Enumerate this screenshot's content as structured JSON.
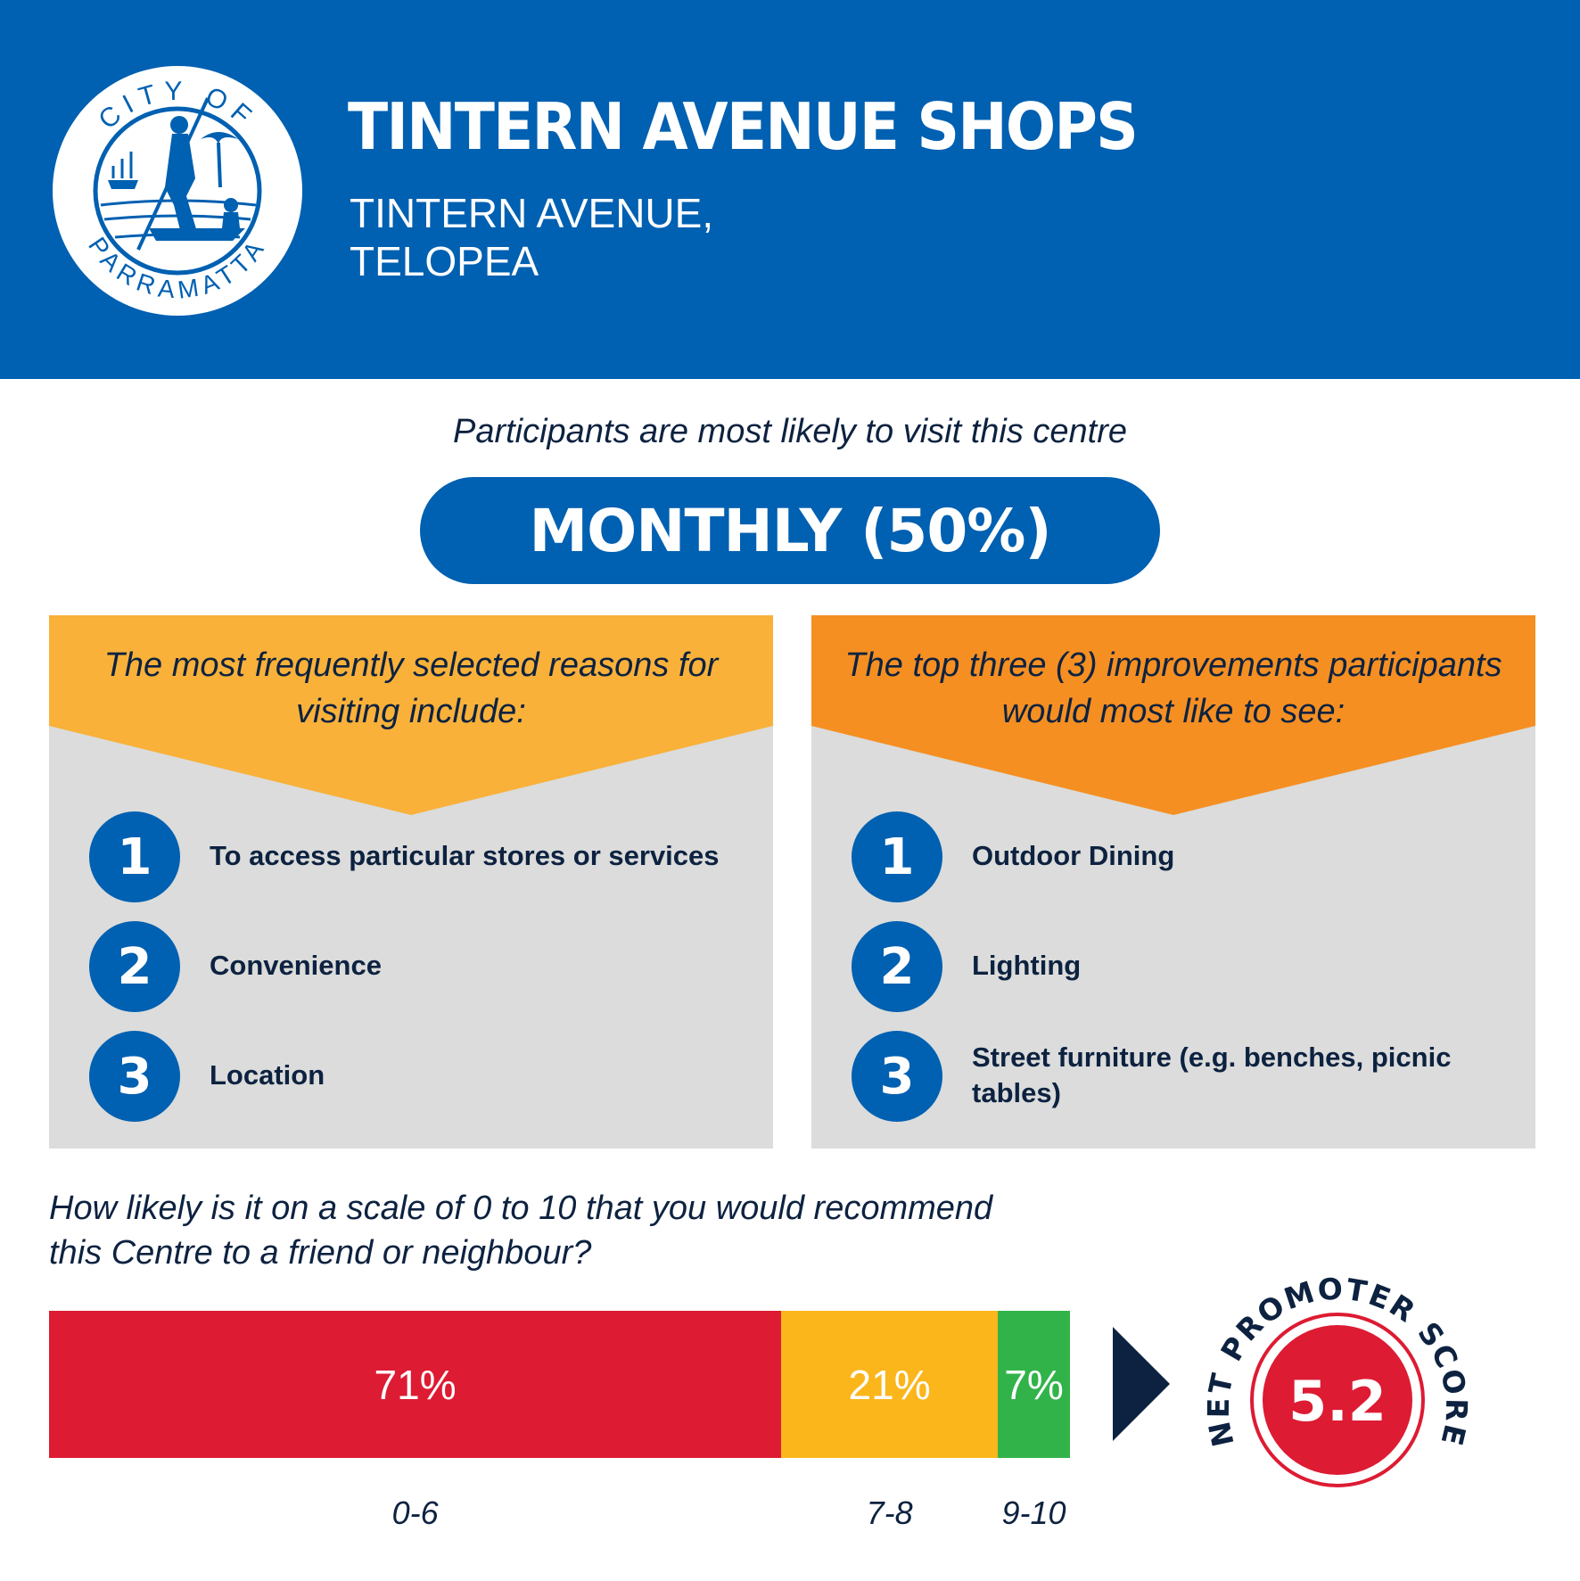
{
  "header": {
    "title": "TINTERN AVENUE SHOPS",
    "address_line1": "TINTERN AVENUE,",
    "address_line2": "TELOPEA",
    "logo": {
      "top_text": "CITY OF",
      "bottom_text": "PARRAMATTA"
    }
  },
  "frequency": {
    "intro": "Participants are most likely to visit this centre",
    "value": "MONTHLY (50%)"
  },
  "reasons": {
    "heading_line1": "The most frequently selected reasons for",
    "heading_line2": "visiting include:",
    "items": [
      {
        "num": "1",
        "text": "To access particular stores or services"
      },
      {
        "num": "2",
        "text": "Convenience"
      },
      {
        "num": "3",
        "text": "Location"
      }
    ]
  },
  "improvements": {
    "heading_line1": "The top three (3) improvements participants",
    "heading_line2": "would most like to see:",
    "items": [
      {
        "num": "1",
        "text": "Outdoor Dining"
      },
      {
        "num": "2",
        "text": "Lighting"
      },
      {
        "num": "3",
        "text": "Street furniture (e.g. benches, picnic tables)"
      }
    ]
  },
  "recommend": {
    "question_line1": "How likely is it on a scale of 0 to 10 that you would recommend",
    "question_line2": "this Centre to a friend or neighbour?",
    "segments": [
      {
        "label": "71%",
        "value": 71,
        "range": "0-6",
        "color": "#dd1b33"
      },
      {
        "label": "21%",
        "value": 21,
        "range": "7-8",
        "color": "#fbb61c"
      },
      {
        "label": "7%",
        "value": 7,
        "range": "9-10",
        "color": "#32b34a"
      }
    ]
  },
  "nps": {
    "caption": "NET PROMOTER SCORE",
    "value": "5.2",
    "color": "#dd1b33"
  },
  "colors": {
    "blue": "#0060b1",
    "yellow": "#f9b13a",
    "orange": "#f58f22",
    "grey": "#dbdcdb",
    "navy": "#0d2240"
  }
}
